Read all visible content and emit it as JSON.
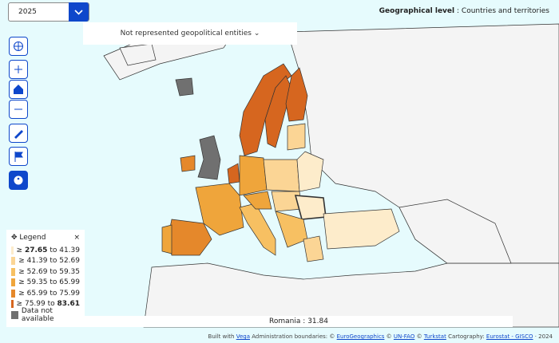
{
  "year_select": {
    "value": "2025"
  },
  "geo_level": {
    "label": "Geographical level",
    "separator": ":",
    "value": "Countries and territories"
  },
  "not_represented": "Not represented geopolitical entities",
  "legend": {
    "title": "Legend",
    "close": "×",
    "ge_symbol": "≥",
    "to_word": "to",
    "items": [
      {
        "from": "27.65",
        "to": "41.39",
        "from_bold": true,
        "to_bold": false,
        "color": "#fdeccb"
      },
      {
        "from": "41.39",
        "to": "52.69",
        "from_bold": false,
        "to_bold": false,
        "color": "#fbd595"
      },
      {
        "from": "52.69",
        "to": "59.35",
        "from_bold": false,
        "to_bold": false,
        "color": "#f7c062"
      },
      {
        "from": "59.35",
        "to": "65.99",
        "from_bold": false,
        "to_bold": false,
        "color": "#efa53b"
      },
      {
        "from": "65.99",
        "to": "75.99",
        "from_bold": false,
        "to_bold": false,
        "color": "#e5882b"
      },
      {
        "from": "75.99",
        "to": "83.61",
        "from_bold": false,
        "to_bold": true,
        "color": "#d6661f"
      }
    ],
    "na": {
      "label": "Data not available",
      "color": "#707070"
    }
  },
  "tooltip": {
    "name": "Romania",
    "separator": ":",
    "value": "31.84"
  },
  "footer": [
    {
      "text": "Built with",
      "link": false
    },
    {
      "text": "Vega",
      "link": true
    },
    {
      "text": "Administration boundaries: ©",
      "link": false
    },
    {
      "text": "EuroGeographics",
      "link": true
    },
    {
      "text": "©",
      "link": false
    },
    {
      "text": "UN-FAO",
      "link": true
    },
    {
      "text": "©",
      "link": false
    },
    {
      "text": "Turkstat",
      "link": true
    },
    {
      "text": "Cartography:",
      "link": false
    },
    {
      "text": "Eurostat - GISCO",
      "link": true
    },
    {
      "text": "· 2024",
      "link": false
    }
  ]
}
